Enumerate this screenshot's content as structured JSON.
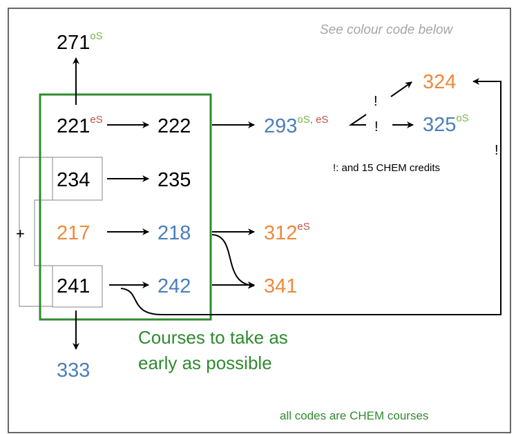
{
  "note": "See colour code below",
  "nodes": [
    {
      "label": "271",
      "color": "#000000",
      "sup": [
        {
          "text": "oS",
          "color": "#7ab648"
        }
      ]
    },
    {
      "label": "221",
      "color": "#000000",
      "sup": [
        {
          "text": "eS",
          "color": "#c0504d"
        }
      ]
    },
    {
      "label": "222",
      "color": "#000000",
      "sup": []
    },
    {
      "label": "293",
      "color": "#4a7ebb",
      "sup": [
        {
          "text": "oS",
          "color": "#7ab648"
        },
        {
          "text": ", eS",
          "color": "#c0504d"
        }
      ]
    },
    {
      "label": "324",
      "color": "#f0883a",
      "sup": []
    },
    {
      "label": "325",
      "color": "#4a7ebb",
      "sup": [
        {
          "text": "oS",
          "color": "#7ab648"
        }
      ]
    },
    {
      "label": "234",
      "color": "#000000",
      "sup": []
    },
    {
      "label": "235",
      "color": "#000000",
      "sup": []
    },
    {
      "label": "217",
      "color": "#f0883a",
      "sup": []
    },
    {
      "label": "218",
      "color": "#4a7ebb",
      "sup": []
    },
    {
      "label": "312",
      "color": "#f0883a",
      "sup": [
        {
          "text": "eS",
          "color": "#c0504d"
        }
      ]
    },
    {
      "label": "241",
      "color": "#000000",
      "sup": []
    },
    {
      "label": "242",
      "color": "#4a7ebb",
      "sup": []
    },
    {
      "label": "341",
      "color": "#f0883a",
      "sup": []
    },
    {
      "label": "333",
      "color": "#4a7ebb",
      "sup": []
    }
  ],
  "bangs": [
    "!",
    "!",
    "!"
  ],
  "condition": "!: and 15 CHEM credits",
  "plus": "+",
  "box_label": [
    "Courses to take as",
    "early as possible"
  ],
  "footer": "all codes are CHEM courses"
}
